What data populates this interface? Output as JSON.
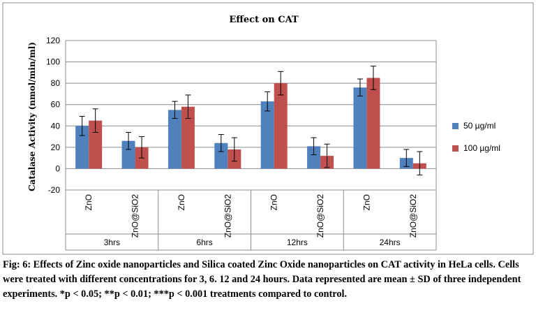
{
  "chart_data": {
    "type": "bar",
    "title": "Effect  on CAT",
    "ylabel": "Catalase Activity (nmol/min/ml)",
    "xlabel": "",
    "ylim": [
      -20,
      120
    ],
    "yticks": [
      -20,
      0,
      20,
      40,
      60,
      80,
      100,
      120
    ],
    "grid": true,
    "legend_position": "right",
    "groups": [
      "3hrs",
      "6hrs",
      "12hrs",
      "24hrs"
    ],
    "categories": [
      "ZnO",
      "ZnO@SiO2",
      "ZnO",
      "ZnO@SiO2",
      "ZnO",
      "ZnO@SiO2",
      "ZnO",
      "ZnO@SiO2"
    ],
    "series": [
      {
        "name": "50 µg/ml",
        "color": "#4F81BD",
        "values": [
          40,
          26,
          55,
          24,
          63,
          21,
          76,
          10
        ],
        "errors": [
          9,
          8,
          8,
          8,
          9,
          8,
          8,
          8
        ]
      },
      {
        "name": "100 µg/ml",
        "color": "#C0504D",
        "values": [
          45,
          20,
          58,
          18,
          80,
          12,
          85,
          5
        ],
        "errors": [
          11,
          10,
          11,
          11,
          11,
          11,
          11,
          11
        ]
      }
    ]
  },
  "caption": "Fig: 6: Effects of Zinc oxide nanoparticles and Silica coated Zinc Oxide nanoparticles on CAT activity in HeLa cells. Cells were treated with different concentrations for 3, 6. 12 and 24 hours. Data represented are mean ± SD of three independent experiments. *p < 0.05; **p < 0.01; ***p < 0.001 treatments compared to control."
}
